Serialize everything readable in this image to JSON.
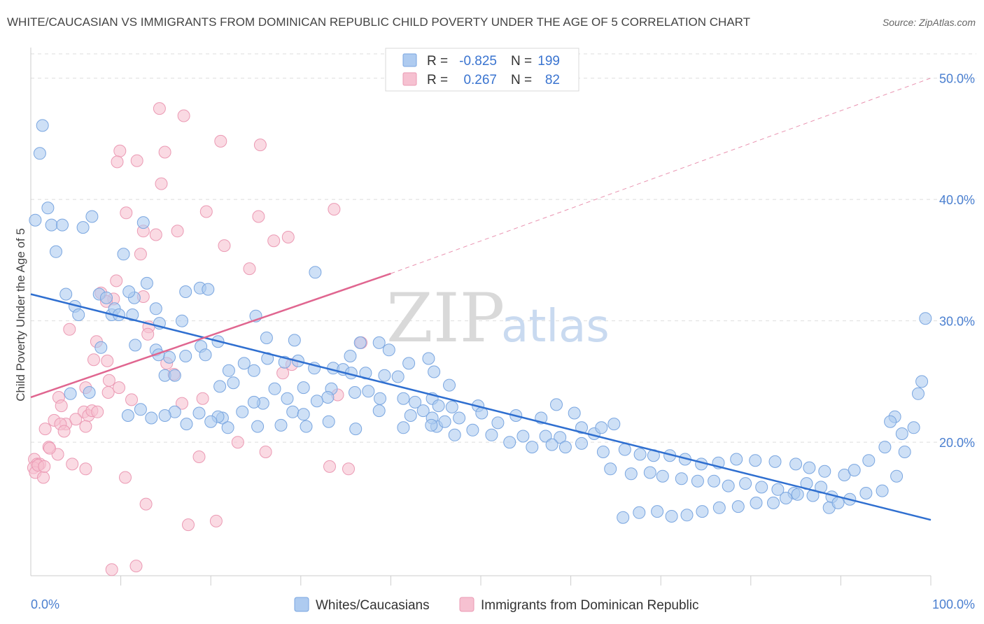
{
  "title": "WHITE/CAUCASIAN VS IMMIGRANTS FROM DOMINICAN REPUBLIC CHILD POVERTY UNDER THE AGE OF 5 CORRELATION CHART",
  "source": "Source: ZipAtlas.com",
  "watermark": {
    "zip": "ZIP",
    "atlas": "atlas"
  },
  "legend": {
    "r_label": "R =",
    "n_label": "N =",
    "rows": [
      {
        "r": "-0.825",
        "n": "199"
      },
      {
        "r": "0.267",
        "n": "82"
      }
    ]
  },
  "colors": {
    "blue_fill": "#aecbf0",
    "blue_stroke": "#7aa6e0",
    "blue_line": "#2f6fd0",
    "pink_fill": "#f6c1d1",
    "pink_stroke": "#eb9ab4",
    "pink_line": "#e06690",
    "grid": "#dddddd",
    "axis_text": "#4a7fd0"
  },
  "chart_data": {
    "type": "scatter",
    "title": "WHITE/CAUCASIAN VS IMMIGRANTS FROM DOMINICAN REPUBLIC CHILD POVERTY UNDER THE AGE OF 5 CORRELATION CHART",
    "xlabel": "",
    "ylabel": "Child Poverty Under the Age of 5",
    "xlim": [
      0,
      100
    ],
    "ylim": [
      9,
      52
    ],
    "x_ticks": [
      {
        "v": 0,
        "label": "0.0%"
      },
      {
        "v": 100,
        "label": "100.0%"
      }
    ],
    "y_ticks": [
      {
        "v": 20,
        "label": "20.0%"
      },
      {
        "v": 30,
        "label": "30.0%"
      },
      {
        "v": 40,
        "label": "40.0%"
      },
      {
        "v": 50,
        "label": "50.0%"
      }
    ],
    "grid": true,
    "legend_position": "top-center",
    "series": [
      {
        "name": "Whites/Caucasians",
        "color": "blue",
        "trend": {
          "x0": 0,
          "y0": 32.2,
          "x1": 100,
          "y1": 13.6
        },
        "points": [
          [
            0.5,
            38.3
          ],
          [
            1.3,
            46.1
          ],
          [
            1.0,
            43.8
          ],
          [
            1.9,
            39.3
          ],
          [
            2.3,
            37.9
          ],
          [
            3.5,
            37.9
          ],
          [
            5.8,
            37.7
          ],
          [
            6.8,
            38.6
          ],
          [
            2.8,
            35.7
          ],
          [
            10.3,
            35.5
          ],
          [
            12.5,
            38.1
          ],
          [
            3.9,
            32.2
          ],
          [
            4.9,
            31.2
          ],
          [
            5.3,
            30.5
          ],
          [
            7.6,
            32.2
          ],
          [
            8.4,
            31.9
          ],
          [
            9.0,
            30.5
          ],
          [
            9.3,
            31.0
          ],
          [
            11.5,
            31.9
          ],
          [
            12.9,
            33.1
          ],
          [
            14.3,
            29.8
          ],
          [
            13.9,
            31.0
          ],
          [
            10.9,
            32.4
          ],
          [
            9.8,
            30.5
          ],
          [
            11.3,
            30.5
          ],
          [
            17.2,
            32.4
          ],
          [
            18.8,
            32.7
          ],
          [
            19.7,
            32.6
          ],
          [
            16.8,
            30.0
          ],
          [
            25.0,
            30.4
          ],
          [
            26.2,
            28.6
          ],
          [
            29.3,
            28.4
          ],
          [
            31.6,
            34.0
          ],
          [
            36.6,
            28.2
          ],
          [
            38.7,
            28.2
          ],
          [
            35.5,
            27.1
          ],
          [
            39.8,
            27.6
          ],
          [
            42.0,
            26.5
          ],
          [
            44.2,
            26.9
          ],
          [
            20.8,
            28.3
          ],
          [
            18.9,
            27.9
          ],
          [
            19.4,
            27.2
          ],
          [
            17.2,
            27.1
          ],
          [
            13.9,
            27.6
          ],
          [
            15.4,
            27.0
          ],
          [
            11.6,
            28.0
          ],
          [
            14.2,
            27.2
          ],
          [
            7.8,
            27.8
          ],
          [
            23.7,
            26.5
          ],
          [
            26.3,
            26.9
          ],
          [
            28.2,
            26.6
          ],
          [
            29.7,
            26.7
          ],
          [
            31.5,
            26.1
          ],
          [
            33.6,
            26.1
          ],
          [
            34.7,
            26.0
          ],
          [
            22.0,
            25.9
          ],
          [
            24.8,
            25.9
          ],
          [
            14.9,
            25.5
          ],
          [
            16.0,
            25.5
          ],
          [
            35.6,
            25.7
          ],
          [
            37.2,
            25.7
          ],
          [
            39.3,
            25.5
          ],
          [
            40.8,
            25.4
          ],
          [
            44.8,
            25.8
          ],
          [
            22.5,
            24.9
          ],
          [
            27.1,
            24.4
          ],
          [
            21.0,
            24.6
          ],
          [
            30.3,
            24.5
          ],
          [
            33.4,
            24.4
          ],
          [
            36.0,
            24.1
          ],
          [
            37.5,
            24.2
          ],
          [
            41.4,
            23.6
          ],
          [
            44.6,
            23.6
          ],
          [
            46.5,
            24.7
          ],
          [
            38.8,
            23.6
          ],
          [
            33.0,
            23.7
          ],
          [
            31.8,
            23.4
          ],
          [
            28.5,
            23.6
          ],
          [
            25.8,
            23.2
          ],
          [
            24.8,
            23.3
          ],
          [
            29.1,
            22.5
          ],
          [
            30.3,
            22.3
          ],
          [
            23.5,
            22.5
          ],
          [
            21.3,
            22.0
          ],
          [
            18.7,
            22.4
          ],
          [
            16.0,
            22.5
          ],
          [
            20.8,
            22.1
          ],
          [
            6.5,
            24.1
          ],
          [
            4.4,
            24.0
          ],
          [
            42.7,
            23.3
          ],
          [
            43.6,
            22.6
          ],
          [
            45.3,
            23.0
          ],
          [
            46.8,
            22.9
          ],
          [
            49.7,
            23.0
          ],
          [
            47.6,
            22.0
          ],
          [
            45.1,
            21.3
          ],
          [
            42.2,
            22.2
          ],
          [
            44.6,
            22.0
          ],
          [
            50.1,
            22.4
          ],
          [
            51.9,
            21.6
          ],
          [
            53.9,
            22.2
          ],
          [
            56.7,
            22.0
          ],
          [
            58.4,
            23.1
          ],
          [
            60.4,
            22.4
          ],
          [
            62.6,
            20.7
          ],
          [
            64.8,
            21.5
          ],
          [
            63.4,
            21.2
          ],
          [
            61.2,
            21.2
          ],
          [
            58.8,
            20.4
          ],
          [
            57.2,
            20.5
          ],
          [
            54.7,
            20.5
          ],
          [
            53.2,
            20.0
          ],
          [
            51.2,
            20.6
          ],
          [
            49.1,
            21.0
          ],
          [
            47.1,
            20.6
          ],
          [
            46.0,
            21.7
          ],
          [
            44.5,
            21.4
          ],
          [
            41.4,
            21.2
          ],
          [
            38.7,
            22.6
          ],
          [
            36.1,
            21.1
          ],
          [
            33.1,
            21.7
          ],
          [
            30.6,
            21.3
          ],
          [
            27.8,
            21.4
          ],
          [
            25.2,
            21.3
          ],
          [
            21.9,
            21.2
          ],
          [
            20.0,
            21.7
          ],
          [
            17.3,
            21.5
          ],
          [
            13.4,
            22.0
          ],
          [
            10.8,
            22.2
          ],
          [
            12.2,
            22.7
          ],
          [
            14.9,
            22.2
          ],
          [
            55.7,
            19.6
          ],
          [
            57.9,
            19.8
          ],
          [
            59.4,
            19.6
          ],
          [
            61.2,
            19.9
          ],
          [
            63.6,
            19.2
          ],
          [
            66.0,
            19.4
          ],
          [
            67.7,
            19.0
          ],
          [
            69.2,
            18.9
          ],
          [
            71.0,
            18.9
          ],
          [
            72.7,
            18.6
          ],
          [
            74.5,
            18.2
          ],
          [
            76.4,
            18.3
          ],
          [
            78.4,
            18.6
          ],
          [
            80.5,
            18.5
          ],
          [
            82.7,
            18.4
          ],
          [
            85.0,
            18.2
          ],
          [
            86.5,
            17.9
          ],
          [
            88.2,
            17.6
          ],
          [
            90.4,
            17.3
          ],
          [
            64.4,
            17.8
          ],
          [
            66.7,
            17.4
          ],
          [
            68.8,
            17.5
          ],
          [
            70.2,
            17.2
          ],
          [
            72.3,
            17.0
          ],
          [
            74.1,
            16.8
          ],
          [
            75.9,
            16.8
          ],
          [
            77.5,
            16.4
          ],
          [
            79.4,
            16.6
          ],
          [
            81.2,
            16.3
          ],
          [
            83.0,
            16.1
          ],
          [
            84.8,
            15.8
          ],
          [
            86.9,
            15.6
          ],
          [
            89.0,
            15.5
          ],
          [
            91.0,
            15.3
          ],
          [
            92.8,
            15.8
          ],
          [
            94.6,
            16.0
          ],
          [
            96.2,
            17.2
          ],
          [
            97.1,
            19.2
          ],
          [
            98.1,
            21.2
          ],
          [
            99.4,
            30.2
          ],
          [
            98.6,
            24.0
          ],
          [
            99.0,
            25.0
          ],
          [
            96.8,
            20.7
          ],
          [
            96.0,
            22.1
          ],
          [
            95.5,
            21.7
          ],
          [
            94.9,
            19.6
          ],
          [
            93.1,
            18.5
          ],
          [
            91.5,
            17.7
          ],
          [
            87.8,
            16.3
          ],
          [
            86.2,
            16.6
          ],
          [
            85.2,
            15.7
          ],
          [
            83.9,
            15.4
          ],
          [
            82.5,
            15.0
          ],
          [
            80.6,
            15.0
          ],
          [
            78.6,
            14.7
          ],
          [
            76.5,
            14.6
          ],
          [
            74.6,
            14.3
          ],
          [
            72.9,
            14.0
          ],
          [
            71.2,
            13.9
          ],
          [
            69.6,
            14.3
          ],
          [
            67.6,
            14.2
          ],
          [
            65.8,
            13.8
          ],
          [
            88.7,
            14.6
          ],
          [
            89.7,
            15.0
          ]
        ]
      },
      {
        "name": "Immigrants from Dominican Republic",
        "color": "pink",
        "trend": {
          "x0": 0,
          "y0": 23.7,
          "x1": 40,
          "y1": 33.9
        },
        "trend_dashed": {
          "x0": 40,
          "y0": 33.9,
          "x1": 100,
          "y1": 50.0
        },
        "points": [
          [
            14.3,
            47.5
          ],
          [
            17.0,
            46.9
          ],
          [
            21.1,
            44.8
          ],
          [
            25.5,
            44.5
          ],
          [
            9.9,
            44.0
          ],
          [
            14.9,
            43.9
          ],
          [
            9.6,
            43.1
          ],
          [
            11.8,
            43.2
          ],
          [
            14.5,
            41.3
          ],
          [
            19.5,
            39.0
          ],
          [
            10.6,
            38.9
          ],
          [
            25.3,
            38.6
          ],
          [
            33.7,
            39.2
          ],
          [
            12.5,
            37.4
          ],
          [
            13.9,
            37.1
          ],
          [
            16.3,
            37.4
          ],
          [
            27.0,
            36.6
          ],
          [
            28.6,
            36.9
          ],
          [
            21.5,
            36.2
          ],
          [
            12.2,
            35.5
          ],
          [
            9.5,
            33.3
          ],
          [
            7.8,
            32.3
          ],
          [
            9.2,
            31.8
          ],
          [
            8.4,
            31.6
          ],
          [
            12.5,
            32.0
          ],
          [
            24.3,
            34.3
          ],
          [
            13.1,
            29.5
          ],
          [
            4.3,
            29.3
          ],
          [
            13.0,
            28.9
          ],
          [
            7.3,
            28.3
          ],
          [
            36.7,
            28.2
          ],
          [
            8.5,
            26.7
          ],
          [
            7.0,
            26.8
          ],
          [
            15.1,
            26.5
          ],
          [
            29.0,
            26.4
          ],
          [
            28.0,
            25.7
          ],
          [
            15.9,
            25.6
          ],
          [
            8.7,
            25.1
          ],
          [
            6.1,
            24.5
          ],
          [
            8.6,
            24.1
          ],
          [
            3.1,
            23.7
          ],
          [
            9.8,
            24.5
          ],
          [
            34.1,
            23.9
          ],
          [
            11.2,
            23.5
          ],
          [
            16.8,
            23.2
          ],
          [
            19.1,
            23.6
          ],
          [
            3.4,
            23.0
          ],
          [
            5.9,
            22.5
          ],
          [
            6.4,
            22.2
          ],
          [
            6.8,
            22.6
          ],
          [
            7.4,
            22.5
          ],
          [
            2.6,
            21.8
          ],
          [
            3.9,
            21.5
          ],
          [
            3.3,
            21.5
          ],
          [
            5.0,
            21.9
          ],
          [
            6.1,
            21.3
          ],
          [
            1.6,
            21.1
          ],
          [
            3.7,
            20.9
          ],
          [
            23.0,
            20.0
          ],
          [
            26.1,
            19.2
          ],
          [
            2.0,
            19.6
          ],
          [
            0.4,
            18.6
          ],
          [
            0.7,
            18.2
          ],
          [
            1.0,
            18.2
          ],
          [
            0.3,
            17.9
          ],
          [
            0.5,
            17.5
          ],
          [
            0.8,
            18.1
          ],
          [
            1.4,
            17.1
          ],
          [
            4.6,
            18.2
          ],
          [
            6.1,
            17.8
          ],
          [
            18.7,
            18.8
          ],
          [
            33.2,
            18.0
          ],
          [
            35.3,
            17.8
          ],
          [
            10.5,
            17.1
          ],
          [
            12.8,
            14.9
          ],
          [
            17.5,
            13.2
          ],
          [
            20.6,
            13.5
          ],
          [
            9.0,
            9.5
          ],
          [
            11.7,
            9.8
          ],
          [
            3.0,
            19.0
          ],
          [
            2.1,
            19.5
          ],
          [
            1.5,
            18.0
          ]
        ]
      }
    ]
  }
}
